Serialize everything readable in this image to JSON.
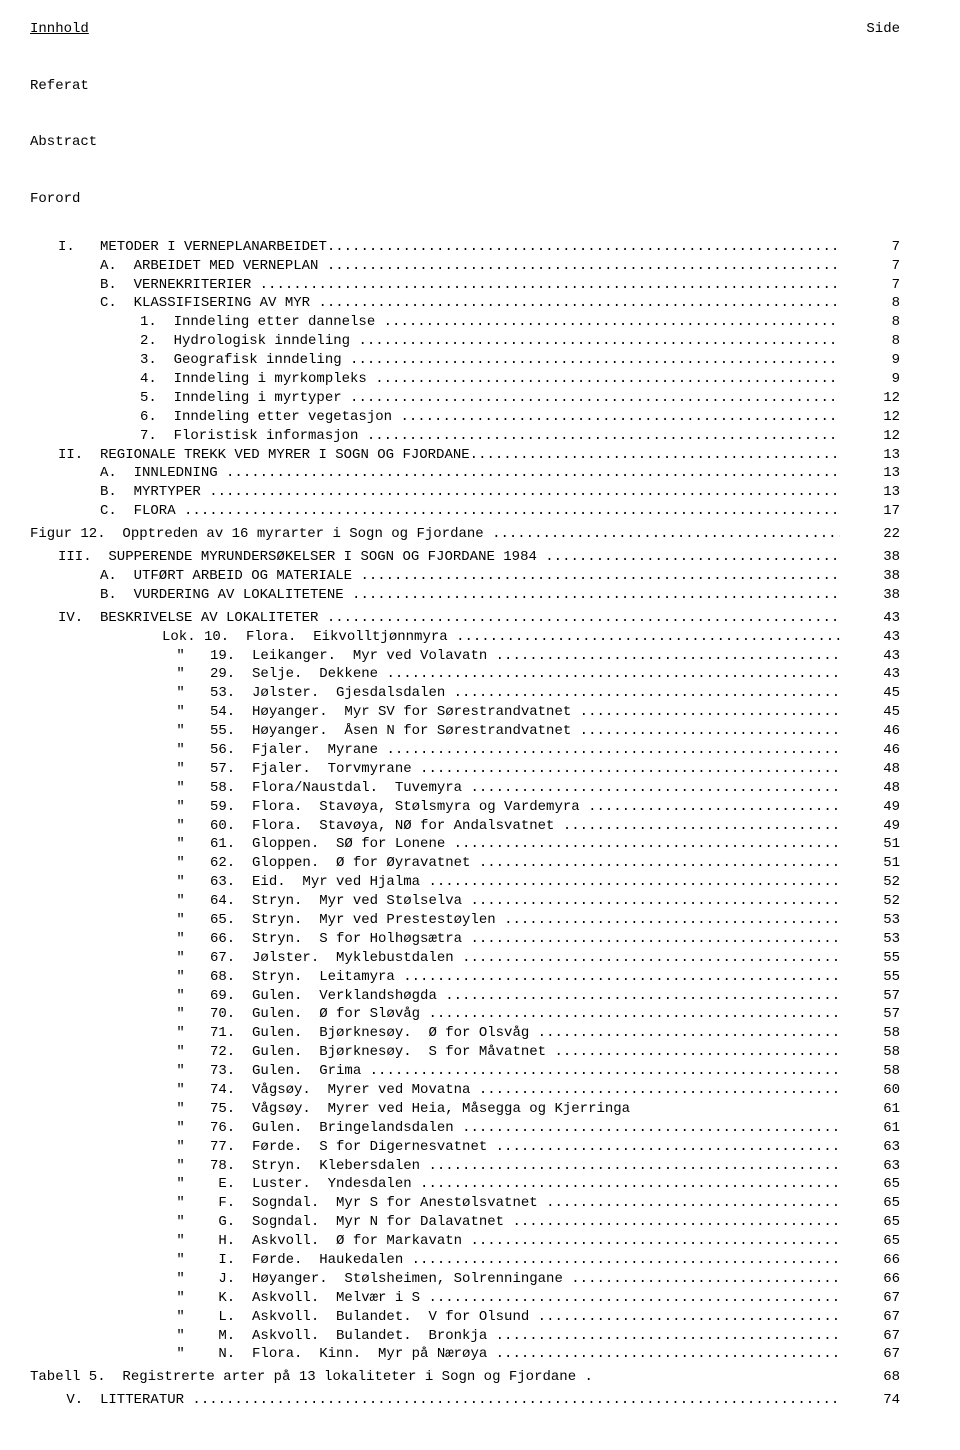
{
  "title_underlined": "Innhold",
  "side_label": "Side",
  "front_matter": [
    "Referat",
    "Abstract",
    "Forord"
  ],
  "sections": [
    {
      "indent": "ind1",
      "label": "I.   METODER I VERNEPLANARBEIDET",
      "page": "7"
    },
    {
      "indent": "ind2",
      "label": "A.  ARBEIDET MED VERNEPLAN ",
      "page": "7"
    },
    {
      "indent": "ind2",
      "label": "B.  VERNEKRITERIER ",
      "page": "7"
    },
    {
      "indent": "ind2",
      "label": "C.  KLASSIFISERING AV MYR ",
      "page": "8"
    },
    {
      "indent": "ind2b",
      "label": "1.  Inndeling etter dannelse ",
      "page": "8"
    },
    {
      "indent": "ind2b",
      "label": "2.  Hydrologisk inndeling ",
      "page": "8"
    },
    {
      "indent": "ind2b",
      "label": "3.  Geografisk inndeling ",
      "page": "9"
    },
    {
      "indent": "ind2b",
      "label": "4.  Inndeling i myrkompleks ",
      "page": "9"
    },
    {
      "indent": "ind2b",
      "label": "5.  Inndeling i myrtyper ",
      "page": "12"
    },
    {
      "indent": "ind2b",
      "label": "6.  Inndeling etter vegetasjon ",
      "page": "12"
    },
    {
      "indent": "ind2b",
      "label": "7.  Floristisk informasjon ",
      "page": "12"
    },
    {
      "indent": "ind1",
      "label": "II.  REGIONALE TREKK VED MYRER I SOGN OG FJORDANE",
      "page": "13"
    },
    {
      "indent": "ind2",
      "label": "A.  INNLEDNING ",
      "page": "13"
    },
    {
      "indent": "ind2",
      "label": "B.  MYRTYPER ",
      "page": "13"
    },
    {
      "indent": "ind2",
      "label": "C.  FLORA ",
      "page": "17"
    }
  ],
  "fig12": {
    "label": "Figur 12.  Opptreden av 16 myrarter i Sogn og Fjordane ",
    "page": "22"
  },
  "section3": [
    {
      "indent": "ind1",
      "label": "III.  SUPPERENDE MYRUNDERSØKELSER I SOGN OG FJORDANE 1984 ",
      "page": "38"
    },
    {
      "indent": "ind2",
      "label": "A.  UTFØRT ARBEID OG MATERIALE ",
      "page": "38"
    },
    {
      "indent": "ind2",
      "label": "B.  VURDERING AV LOKALITETENE ",
      "page": "38"
    }
  ],
  "section4_head": {
    "indent": "ind1",
    "label": "IV.  BESKRIVELSE AV LOKALITETER ",
    "page": "43"
  },
  "lok_first": {
    "label": "Lok. 10.  Flora.  Eikvolltjønnmyra ",
    "page": "43"
  },
  "loks": [
    {
      "num": "19.",
      "text": "Leikanger.  Myr ved Volavatn ",
      "page": "43"
    },
    {
      "num": "29.",
      "text": "Selje.  Dekkene ",
      "page": "43"
    },
    {
      "num": "53.",
      "text": "Jølster.  Gjesdalsdalen ",
      "page": "45"
    },
    {
      "num": "54.",
      "text": "Høyanger.  Myr SV for Sørestrandvatnet ",
      "page": "45"
    },
    {
      "num": "55.",
      "text": "Høyanger.  Åsen N for Sørestrandvatnet ",
      "page": "46"
    },
    {
      "num": "56.",
      "text": "Fjaler.  Myrane ",
      "page": "46"
    },
    {
      "num": "57.",
      "text": "Fjaler.  Torvmyrane ",
      "page": "48"
    },
    {
      "num": "58.",
      "text": "Flora/Naustdal.  Tuvemyra ",
      "page": "48"
    },
    {
      "num": "59.",
      "text": "Flora.  Stavøya, Stølsmyra og Vardemyra ",
      "page": "49"
    },
    {
      "num": "60.",
      "text": "Flora.  Stavøya, NØ for Andalsvatnet ",
      "page": "49"
    },
    {
      "num": "61.",
      "text": "Gloppen.  SØ for Lonene ",
      "page": "51"
    },
    {
      "num": "62.",
      "text": "Gloppen.  Ø for Øyravatnet ",
      "page": "51"
    },
    {
      "num": "63.",
      "text": "Eid.  Myr ved Hjalma ",
      "page": "52"
    },
    {
      "num": "64.",
      "text": "Stryn.  Myr ved Stølselva ",
      "page": "52"
    },
    {
      "num": "65.",
      "text": "Stryn.  Myr ved Prestestøylen ",
      "page": "53"
    },
    {
      "num": "66.",
      "text": "Stryn.  S for Holhøgsætra ",
      "page": "53"
    },
    {
      "num": "67.",
      "text": "Jølster.  Myklebustdalen ",
      "page": "55"
    },
    {
      "num": "68.",
      "text": "Stryn.  Leitamyra ",
      "page": "55"
    },
    {
      "num": "69.",
      "text": "Gulen.  Verklandshøgda ",
      "page": "57"
    },
    {
      "num": "70.",
      "text": "Gulen.  Ø for Sløvåg ",
      "page": "57"
    },
    {
      "num": "71.",
      "text": "Gulen.  Bjørknesøy.  Ø for Olsvåg ",
      "page": "58"
    },
    {
      "num": "72.",
      "text": "Gulen.  Bjørknesøy.  S for Måvatnet ",
      "page": "58"
    },
    {
      "num": "73.",
      "text": "Gulen.  Grima ",
      "page": "58"
    },
    {
      "num": "74.",
      "text": "Vågsøy.  Myrer ved Movatna ",
      "page": "60"
    },
    {
      "num": "75.",
      "text": "Vågsøy.  Myrer ved Heia, Måsegga og Kjerringa",
      "page": "61"
    },
    {
      "num": "76.",
      "text": "Gulen.  Bringelandsdalen ",
      "page": "61"
    },
    {
      "num": "77.",
      "text": "Førde.  S for Digernesvatnet ",
      "page": "63"
    },
    {
      "num": "78.",
      "text": "Stryn.  Klebersdalen ",
      "page": "63"
    },
    {
      "num": " E.",
      "text": "Luster.  Yndesdalen ",
      "page": "65"
    },
    {
      "num": " F.",
      "text": "Sogndal.  Myr S for Anestølsvatnet ",
      "page": "65"
    },
    {
      "num": " G.",
      "text": "Sogndal.  Myr N for Dalavatnet ",
      "page": "65"
    },
    {
      "num": " H.",
      "text": "Askvoll.  Ø for Markavatn ",
      "page": "65"
    },
    {
      "num": " I.",
      "text": "Førde.  Haukedalen ",
      "page": "66"
    },
    {
      "num": " J.",
      "text": "Høyanger.  Stølsheimen, Solrenningane ",
      "page": "66"
    },
    {
      "num": " K.",
      "text": "Askvoll.  Melvær i S ",
      "page": "67"
    },
    {
      "num": " L.",
      "text": "Askvoll.  Bulandet.  V for Olsund ",
      "page": "67"
    },
    {
      "num": " M.",
      "text": "Askvoll.  Bulandet.  Bronkja ",
      "page": "67"
    },
    {
      "num": " N.",
      "text": "Flora.  Kinn.  Myr på Nærøya ",
      "page": "67"
    }
  ],
  "tabell5": {
    "label": "Tabell 5.  Registrerte arter på 13 lokaliteter i Sogn og Fjordane .",
    "page": "68"
  },
  "section5": {
    "indent": "ind1",
    "label": " V.  LITTERATUR ",
    "page": "74"
  }
}
